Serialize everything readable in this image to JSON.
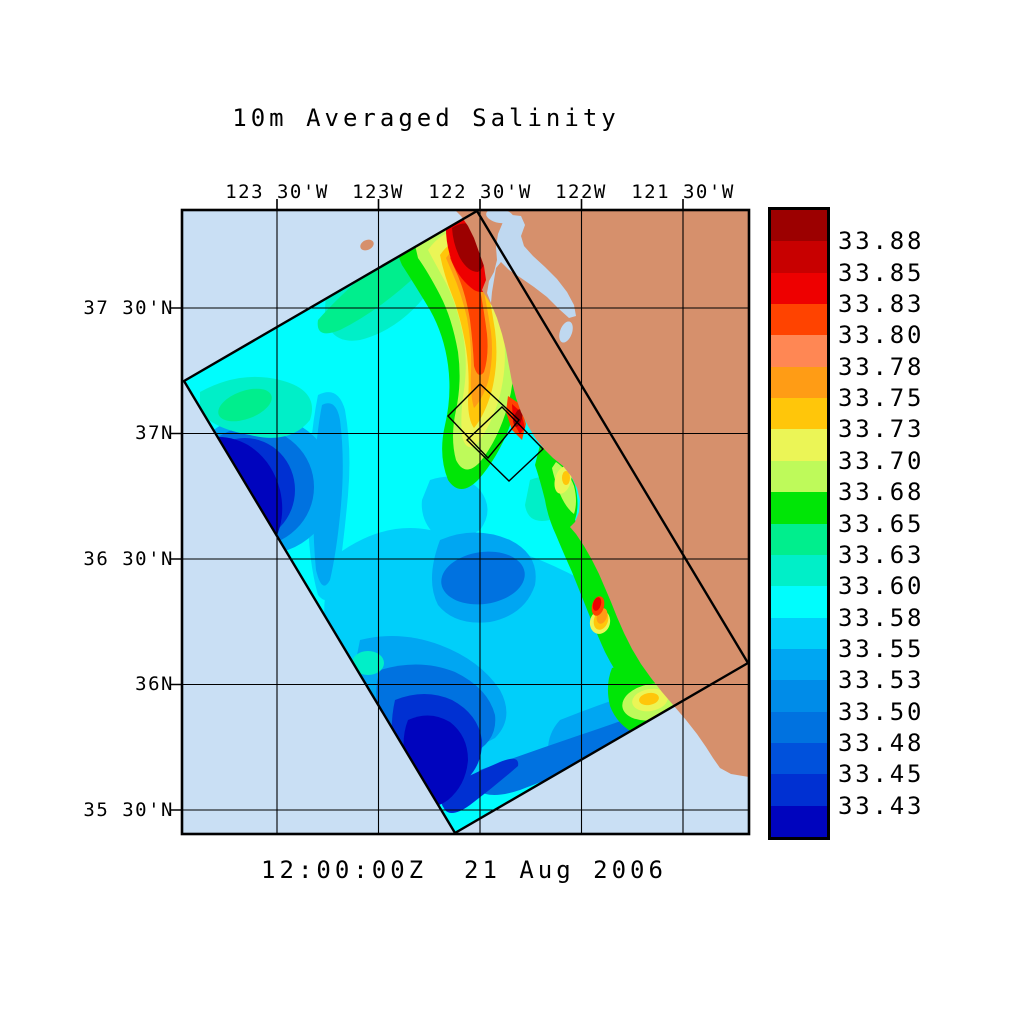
{
  "title": "10m Averaged Salinity",
  "timestamp": "12:00:00Z  21 Aug 2006",
  "map": {
    "top_axis_labels": [
      "123 30'W",
      "123W",
      "122 30'W",
      "122W",
      "121 30'W"
    ],
    "left_axis_labels": [
      "37 30'N",
      "37N",
      "36 30'N",
      "36N",
      "35 30'N"
    ]
  },
  "colorbar": {
    "tick_labels": [
      "33.88",
      "33.85",
      "33.83",
      "33.80",
      "33.78",
      "33.75",
      "33.73",
      "33.70",
      "33.68",
      "33.65",
      "33.63",
      "33.60",
      "33.58",
      "33.55",
      "33.53",
      "33.50",
      "33.48",
      "33.45",
      "33.43"
    ],
    "segment_colors_top_to_bottom": [
      "#9C0000",
      "#C80000",
      "#EE0000",
      "#FF4300",
      "#FF8754",
      "#FF9C15",
      "#FFC60A",
      "#EBF556",
      "#BEFA5A",
      "#00E606",
      "#00EE8D",
      "#00EFC8",
      "#00FDFD",
      "#00CFFA",
      "#00A6F2",
      "#008CE8",
      "#0072E0",
      "#0051DC",
      "#0030D2",
      "#0004BE"
    ]
  },
  "colors": {
    "ocean_background": "#C9DFF4",
    "land": "#D6906C",
    "bay_water": "#BFD8F0",
    "outline": "#000000"
  },
  "chart_data": {
    "type": "heatmap",
    "title": "10m Averaged Salinity",
    "time_label": "12:00:00Z  21 Aug 2006",
    "variable": "salinity (10 m depth average)",
    "x_tick_labels": [
      "123 30'W",
      "123W",
      "122 30'W",
      "122W",
      "121 30'W"
    ],
    "y_tick_labels": [
      "37 30'N",
      "37N",
      "36 30'N",
      "36N",
      "35 30'N"
    ],
    "contour_levels": [
      33.43,
      33.45,
      33.48,
      33.5,
      33.53,
      33.55,
      33.58,
      33.6,
      33.63,
      33.65,
      33.68,
      33.7,
      33.73,
      33.75,
      33.78,
      33.8,
      33.83,
      33.85,
      33.88
    ],
    "palette_top_to_bottom": [
      "#9C0000",
      "#C80000",
      "#EE0000",
      "#FF4300",
      "#FF8754",
      "#FF9C15",
      "#FFC60A",
      "#EBF556",
      "#BEFA5A",
      "#00E606",
      "#00EE8D",
      "#00EFC8",
      "#00FDFD",
      "#00CFFA",
      "#00A6F2",
      "#008CE8",
      "#0072E0",
      "#0051DC",
      "#0030D2",
      "#0004BE"
    ],
    "legend_position": "right",
    "grid": true,
    "features": [
      "rotated rectangular model domain filled with salinity contours",
      "two small nested-domain boxes near 122 30'W / 37N",
      "coastline with land mass to the east and an inland bay",
      "highest salinity (>33.85) hugging the coast near the top of the domain",
      "lowest salinity (<33.43) at the west corner and bottom tip of the domain"
    ]
  }
}
